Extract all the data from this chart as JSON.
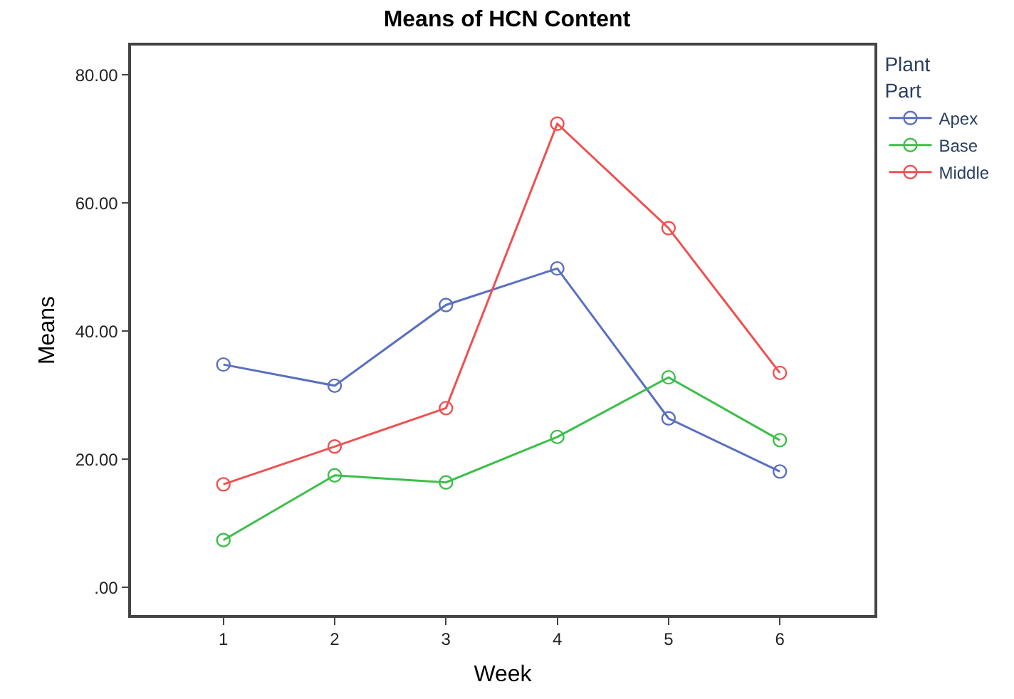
{
  "chart_data": {
    "type": "line",
    "title": "Means of HCN Content",
    "xlabel": "Week",
    "ylabel": "Means",
    "legend_title": "Plant\nPart",
    "x": [
      1,
      2,
      3,
      4,
      5,
      6
    ],
    "series": [
      {
        "name": "Apex",
        "color": "#5a6fc0",
        "values": [
          34.8,
          31.5,
          44.1,
          49.8,
          26.4,
          18.1
        ]
      },
      {
        "name": "Base",
        "color": "#3cbf4a",
        "values": [
          7.4,
          17.5,
          16.4,
          23.5,
          32.8,
          23.0
        ]
      },
      {
        "name": "Middle",
        "color": "#f05050",
        "values": [
          16.1,
          22.0,
          28.0,
          72.4,
          56.1,
          33.5
        ]
      }
    ],
    "xlim": [
      0.17,
      6.85
    ],
    "xticks": [
      1,
      2,
      3,
      4,
      5,
      6
    ],
    "ylim": [
      -4.3,
      84.6
    ],
    "yticks": [
      {
        "value": 0,
        "label": ".00"
      },
      {
        "value": 20,
        "label": "20.00"
      },
      {
        "value": 40,
        "label": "40.00"
      },
      {
        "value": 60,
        "label": "60.00"
      },
      {
        "value": 80,
        "label": "80.00"
      }
    ],
    "legend": "top right",
    "marker": "circle",
    "line_style": "solid"
  }
}
